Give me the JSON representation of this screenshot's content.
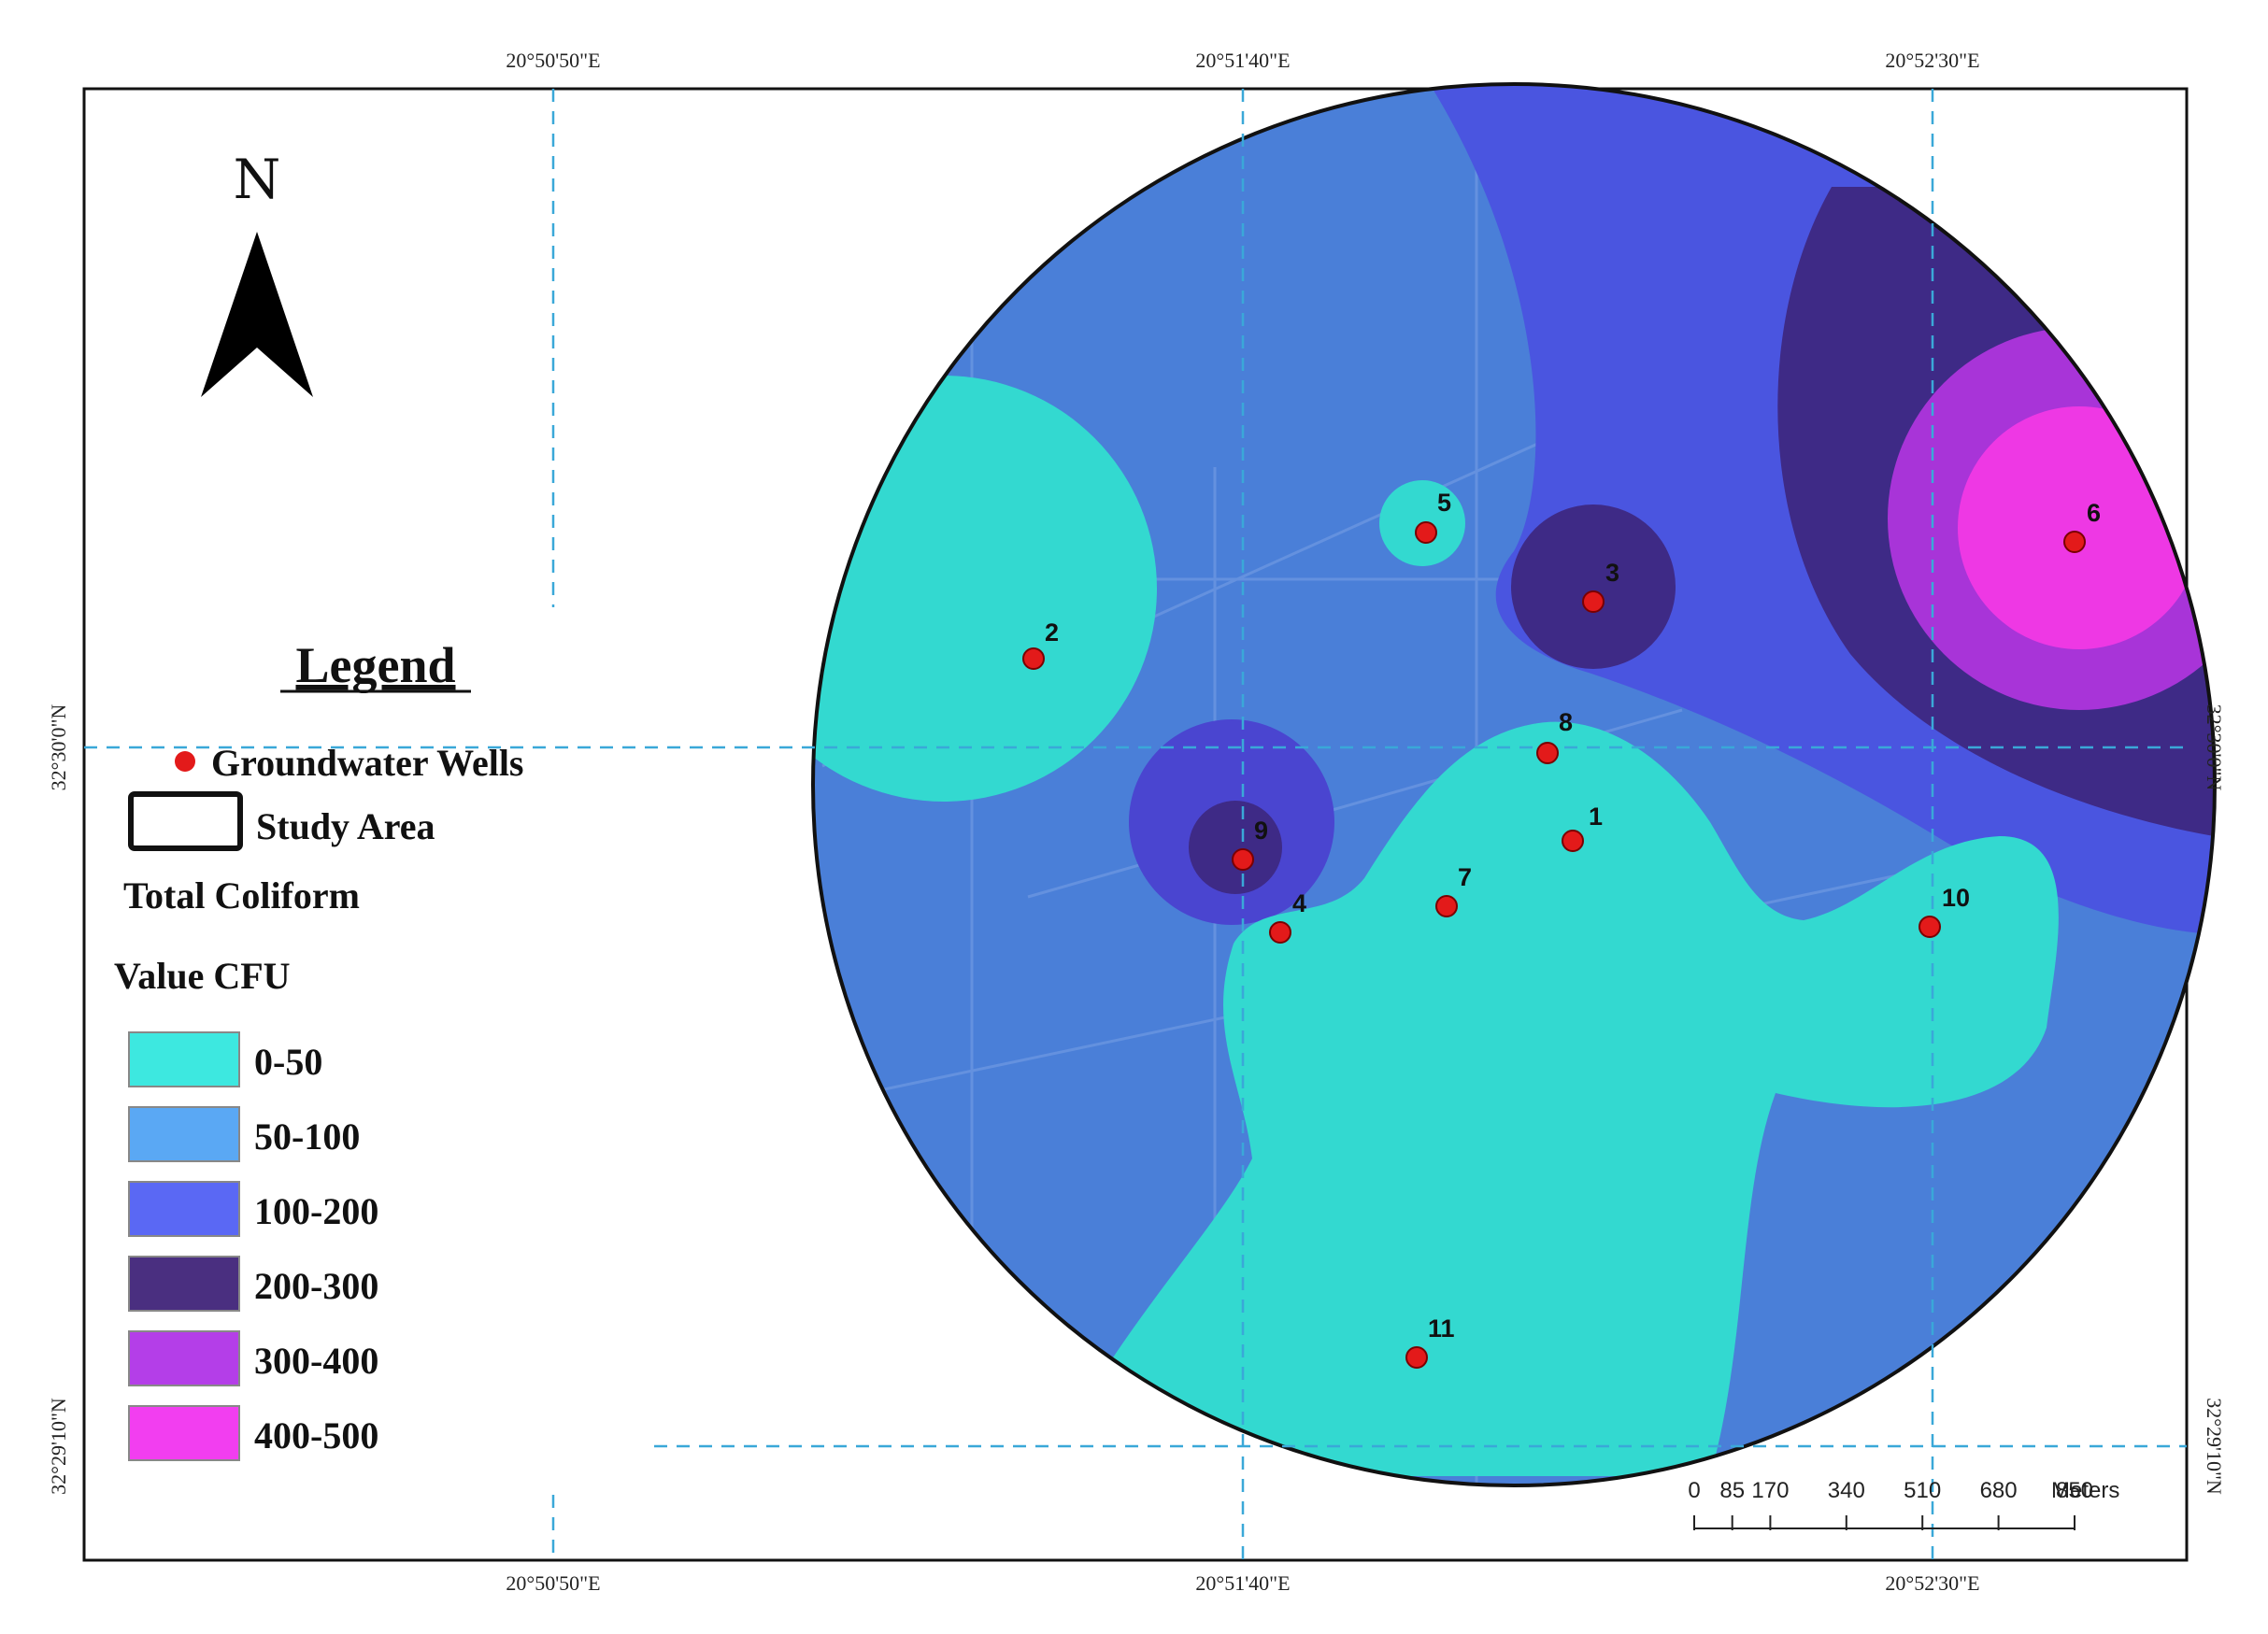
{
  "map": {
    "north_label": "N",
    "coords": {
      "top_lon": [
        "20°50'50\"E",
        "20°51'40\"E",
        "20°52'30\"E"
      ],
      "bottom_lon": [
        "20°50'50\"E",
        "20°51'40\"E",
        "20°52'30\"E"
      ],
      "left_lat": [
        "32°30'0\"N",
        "32°29'10\"N"
      ],
      "right_lat": [
        "32°30'0\"N",
        "32°29'10\"N"
      ]
    },
    "wells": [
      "1",
      "2",
      "3",
      "4",
      "5",
      "6",
      "7",
      "8",
      "9",
      "10",
      "11"
    ]
  },
  "legend": {
    "title": "Legend",
    "wells_label": "Groundwater Wells",
    "study_area_label": "Study Area",
    "parameter_label": "Total Coliform",
    "unit_label": "Value CFU",
    "classes": [
      {
        "label": "0-50",
        "color": "#3de8e0"
      },
      {
        "label": "50-100",
        "color": "#5aa8f4"
      },
      {
        "label": "100-200",
        "color": "#5a68f4"
      },
      {
        "label": "200-300",
        "color": "#4a2f80"
      },
      {
        "label": "300-400",
        "color": "#b43ee8"
      },
      {
        "label": "400-500",
        "color": "#f23ef0"
      }
    ],
    "well_color": "#e31a1a"
  },
  "scale_bar": {
    "ticks": [
      "0",
      "85",
      "170",
      "340",
      "510",
      "680",
      "850"
    ],
    "unit": "Meters"
  }
}
